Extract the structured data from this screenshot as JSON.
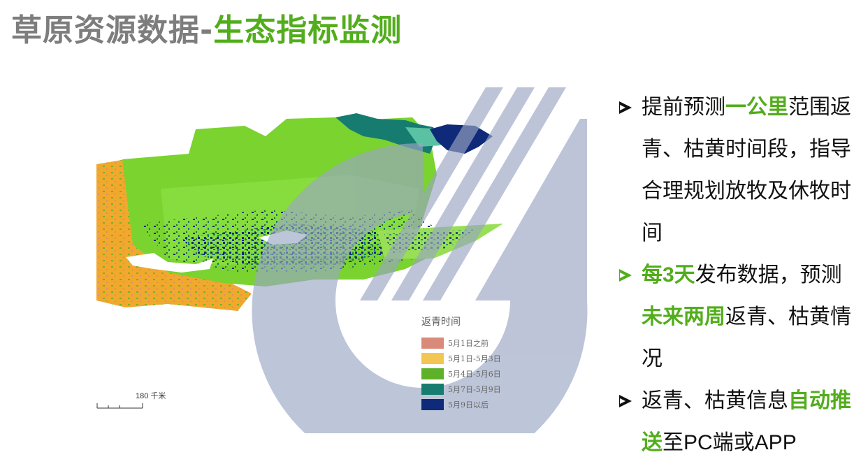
{
  "title": {
    "gray": "草原资源数据-",
    "green": "生态指标监测"
  },
  "map": {
    "watermark_icon": "circle-ca-logo-watermark",
    "legend": {
      "title": "返青时间",
      "items": [
        {
          "label": "5月1日之前",
          "color": "#d98a7a"
        },
        {
          "label": "5月1日-5月3日",
          "color": "#f3c653"
        },
        {
          "label": "5月4日-5月6日",
          "color": "#5db22a"
        },
        {
          "label": "5月7日-5月9日",
          "color": "#167c6f"
        },
        {
          "label": "5月9日以后",
          "color": "#0f2a78"
        }
      ]
    },
    "scale_label": "180 千米"
  },
  "bullets": [
    {
      "arrow_color": "#111111",
      "parts": [
        {
          "text": "提前预测"
        },
        {
          "text": "一公里",
          "highlight": true
        },
        {
          "text": "范围返青、枯黄时间段，指导合理规划放牧及休牧时间"
        }
      ]
    },
    {
      "arrow_color": "#52ad1c",
      "parts": [
        {
          "text": "每3天",
          "highlight": true
        },
        {
          "text": "发布数据，预测"
        },
        {
          "text": "未来两周",
          "highlight": true
        },
        {
          "text": "返青、枯黄情况"
        }
      ]
    },
    {
      "arrow_color": "#111111",
      "parts": [
        {
          "text": "返青、枯黄信息"
        },
        {
          "text": "自动推送",
          "highlight": true
        },
        {
          "text": "至PC端或APP"
        }
      ]
    }
  ],
  "colors": {
    "accent_green": "#52ad1c",
    "title_gray": "#7d7d7d",
    "watermark": "#9aa6c4"
  }
}
